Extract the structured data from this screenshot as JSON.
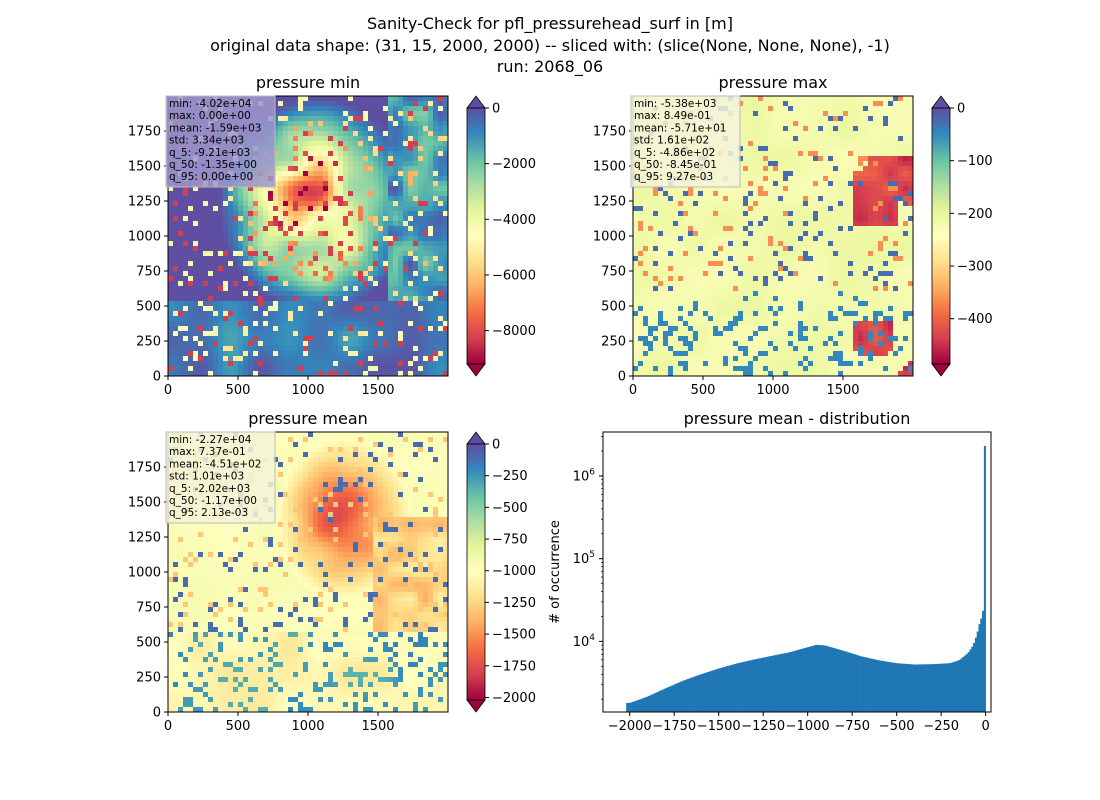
{
  "figure": {
    "suptitle": [
      "Sanity-Check for pfl_pressurehead_surf in [m]",
      "original data shape: (31, 15, 2000, 2000) -- sliced with: (slice(None, None, None), -1)",
      "run: 2068_06"
    ]
  },
  "chart_data": [
    {
      "type": "heatmap",
      "title": "pressure min",
      "cmap": "Spectral",
      "x_ticks": [
        "0",
        "500",
        "1000",
        "1500"
      ],
      "y_ticks": [
        "0",
        "250",
        "500",
        "750",
        "1000",
        "1250",
        "1500",
        "1750"
      ],
      "xlim": [
        0,
        2000
      ],
      "ylim": [
        0,
        2000
      ],
      "colorbar": {
        "vmin": -9200,
        "vmax": 0,
        "ticks": [
          0,
          -2000,
          -4000,
          -6000,
          -8000
        ],
        "tick_labels": [
          "0",
          "−2000",
          "−4000",
          "−6000",
          "−8000"
        ],
        "extend": "both",
        "under_color": "#9e0142",
        "over_color": "#5e4fa2"
      },
      "stats_box_color": "#9c97cc",
      "stats": [
        "min: -4.02e+04",
        "max: 0.00e+00",
        "mean: -1.59e+03",
        "std: 3.34e+03",
        "q_5: -9.21e+03",
        "q_50: -1.35e+00",
        "q_95: 0.00e+00"
      ]
    },
    {
      "type": "heatmap",
      "title": "pressure max",
      "cmap": "Spectral",
      "x_ticks": [
        "0",
        "500",
        "1000",
        "1500"
      ],
      "y_ticks": [
        "0",
        "250",
        "500",
        "750",
        "1000",
        "1250",
        "1500",
        "1750"
      ],
      "xlim": [
        0,
        2000
      ],
      "ylim": [
        0,
        2000
      ],
      "colorbar": {
        "vmin": -486,
        "vmax": 0,
        "ticks": [
          0,
          -100,
          -200,
          -300,
          -400
        ],
        "tick_labels": [
          "0",
          "−100",
          "−200",
          "−300",
          "−400"
        ],
        "extend": "both",
        "under_color": "#9e0142",
        "over_color": "#5e4fa2"
      },
      "stats_box_color": "#f3f3d8",
      "stats": [
        "min: -5.38e+03",
        "max: 8.49e-01",
        "mean: -5.71e+01",
        "std: 1.61e+02",
        "q_5: -4.86e+02",
        "q_50: -8.45e-01",
        "q_95: 9.27e-03"
      ]
    },
    {
      "type": "heatmap",
      "title": "pressure mean",
      "cmap": "Spectral",
      "x_ticks": [
        "0",
        "500",
        "1000",
        "1500"
      ],
      "y_ticks": [
        "0",
        "250",
        "500",
        "750",
        "1000",
        "1250",
        "1500",
        "1750"
      ],
      "xlim": [
        0,
        2000
      ],
      "ylim": [
        0,
        2000
      ],
      "colorbar": {
        "vmin": -2020,
        "vmax": 0,
        "ticks": [
          0,
          -250,
          -500,
          -750,
          -1000,
          -1250,
          -1500,
          -1750,
          -2000
        ],
        "tick_labels": [
          "0",
          "−250",
          "−500",
          "−750",
          "−1000",
          "−1250",
          "−1500",
          "−1750",
          "−2000"
        ],
        "extend": "both",
        "under_color": "#9e0142",
        "over_color": "#5e4fa2"
      },
      "stats_box_color": "#f3f3d8",
      "stats": [
        "min: -2.27e+04",
        "max: 7.37e-01",
        "mean: -4.51e+02",
        "std: 1.01e+03",
        "q_5: -2.02e+03",
        "q_50: -1.17e+00",
        "q_95: 2.13e-03"
      ]
    },
    {
      "type": "bar",
      "title": "pressure mean - distribution",
      "ylabel": "# of occurrence",
      "xlabel": "",
      "y_scale": "log",
      "xlim": [
        -2150,
        30
      ],
      "ylim": [
        1400,
        3400000
      ],
      "x_ticks": [
        -2000,
        -1750,
        -1500,
        -1250,
        -1000,
        -750,
        -500,
        -250,
        0
      ],
      "x_tick_labels": [
        "−2000",
        "−1750",
        "−1500",
        "−1250",
        "−1000",
        "−750",
        "−500",
        "−250",
        "0"
      ],
      "y_ticks": [
        10000,
        100000,
        1000000
      ],
      "bar_color": "#1f77b4",
      "bin_edges_range": [
        -2020,
        0
      ],
      "bins": [
        [
          -2000,
          1800
        ],
        [
          -1900,
          2150
        ],
        [
          -1800,
          2700
        ],
        [
          -1700,
          3350
        ],
        [
          -1600,
          4000
        ],
        [
          -1500,
          4700
        ],
        [
          -1400,
          5400
        ],
        [
          -1300,
          6050
        ],
        [
          -1200,
          6700
        ],
        [
          -1100,
          7400
        ],
        [
          -1000,
          8500
        ],
        [
          -950,
          9100
        ],
        [
          -900,
          8900
        ],
        [
          -800,
          7700
        ],
        [
          -700,
          6600
        ],
        [
          -600,
          5900
        ],
        [
          -500,
          5450
        ],
        [
          -400,
          5250
        ],
        [
          -300,
          5300
        ],
        [
          -200,
          5450
        ],
        [
          -150,
          5900
        ],
        [
          -100,
          7200
        ],
        [
          -70,
          9000
        ],
        [
          -50,
          12000
        ],
        [
          -30,
          18000
        ],
        [
          -20,
          20000
        ],
        [
          -12,
          26000
        ],
        [
          -4,
          2300000
        ]
      ]
    }
  ]
}
